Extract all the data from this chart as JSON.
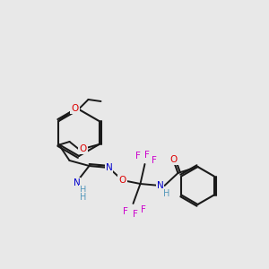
{
  "bg_color": "#e8e8e8",
  "bond_color": "#1a1a1a",
  "atom_colors": {
    "N": "#0000cc",
    "O": "#dd0000",
    "F": "#cc00cc",
    "H": "#5599bb",
    "C": "#1a1a1a"
  },
  "figsize": [
    3.0,
    3.0
  ],
  "dpi": 100
}
